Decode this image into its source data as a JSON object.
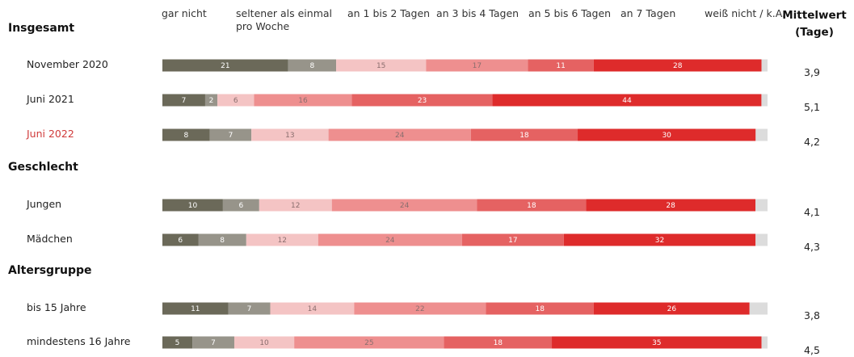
{
  "chart_data": {
    "type": "bar",
    "orientation": "horizontal-stacked",
    "legend": [
      {
        "name": "gar nicht",
        "color": "#6b6959"
      },
      {
        "name": "seltener als einmal pro Woche",
        "color": "#97948a"
      },
      {
        "name": "an 1 bis 2 Tagen",
        "color": "#f4c4c4"
      },
      {
        "name": "an 3 bis 4 Tagen",
        "color": "#ee8f8f"
      },
      {
        "name": "an 5 bis 6 Tagen",
        "color": "#e56262"
      },
      {
        "name": "an 7 Tagen",
        "color": "#de2b2b"
      },
      {
        "name": "weiß nicht / k.A.",
        "color": "#dcdcdc"
      }
    ],
    "mean_header": [
      "Mittelwert",
      "(Tage)"
    ],
    "sections": [
      {
        "title": "Insgesamt",
        "rows": [
          {
            "label": "November 2020",
            "values": [
              21,
              8,
              15,
              17,
              11,
              28,
              1
            ],
            "mean": "3,9"
          },
          {
            "label": "Juni 2021",
            "values": [
              7,
              2,
              6,
              16,
              23,
              44,
              1
            ],
            "mean": "5,1"
          },
          {
            "label": "Juni 2022",
            "values": [
              8,
              7,
              13,
              24,
              18,
              30,
              2
            ],
            "mean": "4,2",
            "highlight": true
          }
        ]
      },
      {
        "title": "Geschlecht",
        "rows": [
          {
            "label": "Jungen",
            "values": [
              10,
              6,
              12,
              24,
              18,
              28,
              2
            ],
            "mean": "4,1"
          },
          {
            "label": "Mädchen",
            "values": [
              6,
              8,
              12,
              24,
              17,
              32,
              2
            ],
            "mean": "4,3"
          }
        ]
      },
      {
        "title": "Altersgruppe",
        "rows": [
          {
            "label": "bis 15 Jahre",
            "values": [
              11,
              7,
              14,
              22,
              18,
              26,
              3
            ],
            "mean": "3,8"
          },
          {
            "label": "mindestens 16 Jahre",
            "values": [
              5,
              7,
              10,
              25,
              18,
              35,
              1
            ],
            "mean": "4,5"
          }
        ]
      }
    ]
  }
}
